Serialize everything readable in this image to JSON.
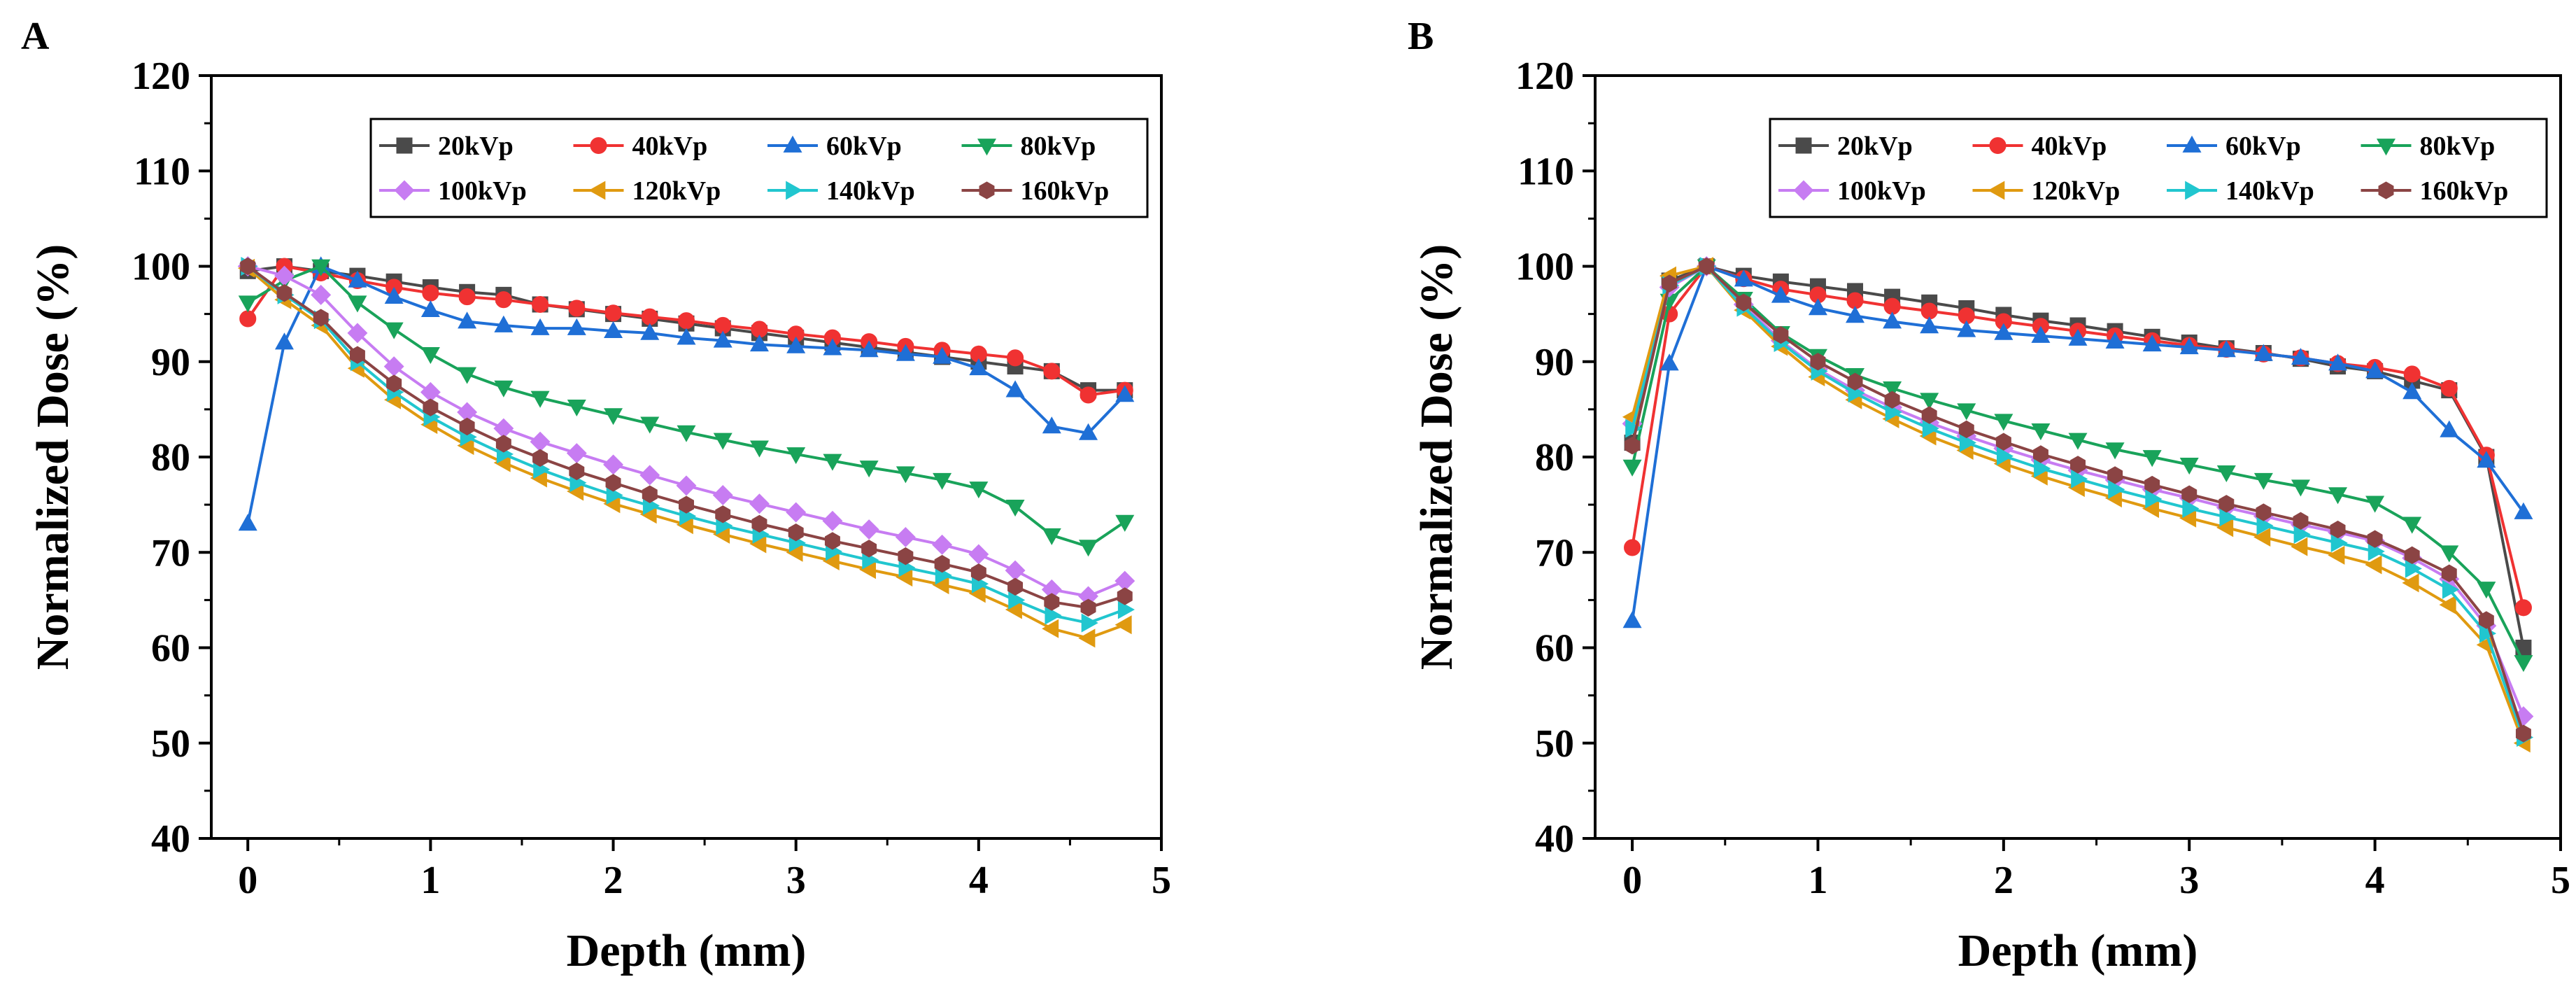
{
  "chart_data": [
    {
      "type": "line",
      "panel": "A",
      "xlabel": "Depth (mm)",
      "ylabel": "Normalized  Dose (%)",
      "xlim": [
        -0.2,
        5
      ],
      "ylim": [
        40,
        120
      ],
      "xticks": [
        0,
        1,
        2,
        3,
        4,
        5
      ],
      "yticks": [
        40,
        50,
        60,
        70,
        80,
        90,
        100,
        110,
        120
      ],
      "legend": "top-right",
      "x": [
        0,
        0.2,
        0.4,
        0.6,
        0.8,
        1.0,
        1.2,
        1.4,
        1.6,
        1.8,
        2.0,
        2.2,
        2.4,
        2.6,
        2.8,
        3.0,
        3.2,
        3.4,
        3.6,
        3.8,
        4.0,
        4.2,
        4.4,
        4.6,
        4.8
      ],
      "series": [
        {
          "name": "20kVp",
          "color": "#4a4a4a",
          "marker": "square",
          "values": [
            99.5,
            100,
            99.5,
            99,
            98.4,
            97.8,
            97.3,
            97.0,
            96.0,
            95.5,
            95.0,
            94.5,
            94.0,
            93.5,
            93.0,
            92.5,
            92.0,
            91.5,
            91.0,
            90.5,
            90.0,
            89.5,
            89.0,
            87.0,
            87.0
          ]
        },
        {
          "name": "40kVp",
          "color": "#f03232",
          "marker": "circle",
          "values": [
            94.5,
            100,
            99.3,
            98.5,
            97.8,
            97.2,
            96.8,
            96.5,
            96.0,
            95.6,
            95.1,
            94.7,
            94.3,
            93.8,
            93.4,
            92.9,
            92.5,
            92.1,
            91.6,
            91.2,
            90.8,
            90.4,
            89.0,
            86.5,
            87.0
          ]
        },
        {
          "name": "60kVp",
          "color": "#1f6fd6",
          "marker": "triangle-up",
          "values": [
            73,
            92,
            100,
            98.5,
            96.8,
            95.4,
            94.2,
            93.8,
            93.5,
            93.5,
            93.2,
            93.0,
            92.5,
            92.2,
            91.8,
            91.6,
            91.4,
            91.2,
            90.8,
            90.5,
            89.3,
            87.0,
            83.2,
            82.5,
            86.5
          ]
        },
        {
          "name": "80kVp",
          "color": "#19a35a",
          "marker": "triangle-down",
          "values": [
            96.2,
            98.5,
            100,
            96.2,
            93.4,
            90.8,
            88.7,
            87.3,
            86.2,
            85.3,
            84.4,
            83.5,
            82.6,
            81.8,
            81.0,
            80.3,
            79.6,
            78.9,
            78.3,
            77.6,
            76.7,
            74.8,
            71.8,
            70.6,
            73.2
          ]
        },
        {
          "name": "100kVp",
          "color": "#c77cf2",
          "marker": "diamond",
          "values": [
            100,
            99,
            97,
            93,
            89.5,
            86.8,
            84.7,
            83.0,
            81.6,
            80.4,
            79.2,
            78.1,
            77.0,
            76.0,
            75.1,
            74.2,
            73.3,
            72.4,
            71.6,
            70.8,
            69.8,
            68.1,
            66.1,
            65.4,
            67.0
          ]
        },
        {
          "name": "120kVp",
          "color": "#e09a10",
          "marker": "triangle-left",
          "values": [
            99.8,
            96.5,
            93.8,
            89.3,
            86.0,
            83.4,
            81.2,
            79.4,
            77.8,
            76.4,
            75.1,
            74.0,
            72.9,
            71.9,
            70.9,
            70.0,
            69.1,
            68.2,
            67.4,
            66.6,
            65.7,
            64.0,
            62.0,
            61.0,
            62.4
          ]
        },
        {
          "name": "140kVp",
          "color": "#21c6cf",
          "marker": "triangle-right",
          "values": [
            100,
            97,
            94.4,
            90.0,
            86.8,
            84.2,
            82.1,
            80.3,
            78.7,
            77.3,
            76.0,
            74.9,
            73.8,
            72.8,
            71.9,
            71.0,
            70.1,
            69.2,
            68.4,
            67.6,
            66.7,
            65.0,
            63.4,
            62.6,
            64.0
          ]
        },
        {
          "name": "160kVp",
          "color": "#8b4444",
          "marker": "hexagon",
          "values": [
            100,
            97.2,
            94.6,
            90.7,
            87.7,
            85.2,
            83.2,
            81.4,
            79.9,
            78.5,
            77.3,
            76.1,
            75.0,
            74.0,
            73.0,
            72.1,
            71.2,
            70.4,
            69.6,
            68.8,
            67.9,
            66.4,
            64.8,
            64.2,
            65.4
          ]
        }
      ]
    },
    {
      "type": "line",
      "panel": "B",
      "xlabel": "Depth (mm)",
      "ylabel": "Normalized  Dose (%)",
      "xlim": [
        -0.2,
        5
      ],
      "ylim": [
        40,
        120
      ],
      "xticks": [
        0,
        1,
        2,
        3,
        4,
        5
      ],
      "yticks": [
        40,
        50,
        60,
        70,
        80,
        90,
        100,
        110,
        120
      ],
      "legend": "top-right",
      "x": [
        0,
        0.2,
        0.4,
        0.6,
        0.8,
        1.0,
        1.2,
        1.4,
        1.6,
        1.8,
        2.0,
        2.2,
        2.4,
        2.6,
        2.8,
        3.0,
        3.2,
        3.4,
        3.6,
        3.8,
        4.0,
        4.2,
        4.4,
        4.6,
        4.8
      ],
      "series": [
        {
          "name": "20kVp",
          "color": "#4a4a4a",
          "marker": "square",
          "values": [
            81.5,
            98.5,
            100,
            99,
            98.4,
            97.9,
            97.4,
            96.8,
            96.2,
            95.6,
            94.9,
            94.3,
            93.8,
            93.2,
            92.6,
            92.0,
            91.4,
            90.9,
            90.3,
            89.5,
            89.0,
            88.0,
            87.0,
            80.0,
            60.0
          ]
        },
        {
          "name": "40kVp",
          "color": "#f03232",
          "marker": "circle",
          "values": [
            70.5,
            95.0,
            100,
            98.7,
            97.6,
            97.0,
            96.4,
            95.8,
            95.3,
            94.8,
            94.2,
            93.7,
            93.2,
            92.7,
            92.2,
            91.7,
            91.3,
            90.8,
            90.4,
            89.8,
            89.4,
            88.7,
            87.2,
            80.2,
            64.2
          ]
        },
        {
          "name": "60kVp",
          "color": "#1f6fd6",
          "marker": "triangle-up",
          "values": [
            62.8,
            89.8,
            100,
            98.6,
            96.9,
            95.6,
            94.8,
            94.2,
            93.7,
            93.3,
            93.0,
            92.7,
            92.4,
            92.1,
            91.8,
            91.5,
            91.2,
            90.8,
            90.4,
            89.8,
            89.0,
            86.8,
            82.8,
            79.6,
            74.2
          ]
        },
        {
          "name": "80kVp",
          "color": "#19a35a",
          "marker": "triangle-down",
          "values": [
            79.0,
            96.4,
            100,
            96.6,
            93.0,
            90.6,
            88.6,
            87.2,
            86.0,
            84.9,
            83.8,
            82.8,
            81.8,
            80.8,
            80.0,
            79.2,
            78.4,
            77.6,
            76.9,
            76.1,
            75.2,
            73.0,
            70.0,
            66.2,
            58.5
          ]
        },
        {
          "name": "100kVp",
          "color": "#c77cf2",
          "marker": "diamond",
          "values": [
            83.5,
            97.8,
            100,
            96.0,
            92.2,
            89.2,
            87.0,
            85.2,
            83.6,
            82.2,
            80.9,
            79.7,
            78.6,
            77.6,
            76.6,
            75.7,
            74.7,
            73.8,
            72.9,
            72.1,
            71.2,
            69.4,
            67.2,
            62.3,
            52.8
          ]
        },
        {
          "name": "120kVp",
          "color": "#e09a10",
          "marker": "triangle-left",
          "values": [
            84.2,
            99.0,
            100,
            95.4,
            91.6,
            88.4,
            86.0,
            84.0,
            82.2,
            80.7,
            79.3,
            78.0,
            76.8,
            75.7,
            74.6,
            73.6,
            72.6,
            71.6,
            70.6,
            69.7,
            68.7,
            66.8,
            64.5,
            60.3,
            50.0
          ]
        },
        {
          "name": "140kVp",
          "color": "#21c6cf",
          "marker": "triangle-right",
          "values": [
            83.0,
            98.0,
            100,
            95.7,
            92.0,
            89.0,
            86.7,
            84.7,
            83.0,
            81.5,
            80.1,
            78.8,
            77.7,
            76.6,
            75.6,
            74.6,
            73.7,
            72.8,
            71.9,
            71.0,
            70.1,
            68.3,
            66.1,
            61.5,
            50.6
          ]
        },
        {
          "name": "160kVp",
          "color": "#8b4444",
          "marker": "hexagon",
          "values": [
            81.2,
            98.2,
            100,
            96.2,
            92.8,
            90.0,
            87.9,
            86.0,
            84.4,
            82.9,
            81.6,
            80.3,
            79.2,
            78.1,
            77.1,
            76.1,
            75.1,
            74.2,
            73.3,
            72.4,
            71.4,
            69.7,
            67.8,
            62.9,
            51.0
          ]
        }
      ]
    }
  ]
}
